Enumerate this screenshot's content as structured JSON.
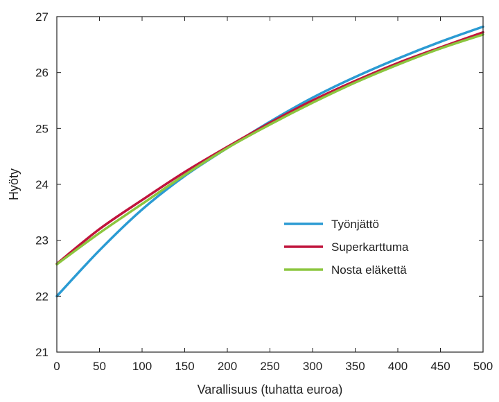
{
  "chart_data": {
    "type": "line",
    "title": "",
    "xlabel": "Varallisuus (tuhatta euroa)",
    "ylabel": "Hyöty",
    "xlim": [
      0,
      500
    ],
    "ylim": [
      21,
      27
    ],
    "xticks": [
      0,
      50,
      100,
      150,
      200,
      250,
      300,
      350,
      400,
      450,
      500
    ],
    "yticks": [
      21,
      22,
      23,
      24,
      25,
      26,
      27
    ],
    "grid": false,
    "legend_position": "center-right",
    "x": [
      0,
      50,
      100,
      150,
      200,
      250,
      300,
      350,
      400,
      450,
      500
    ],
    "series": [
      {
        "name": "Työnjättö",
        "color": "#2B9BD3",
        "values": [
          22.0,
          22.82,
          23.55,
          24.15,
          24.65,
          25.12,
          25.55,
          25.92,
          26.25,
          26.55,
          26.82
        ]
      },
      {
        "name": "Superkarttuma",
        "color": "#C0143C",
        "values": [
          22.58,
          23.2,
          23.72,
          24.22,
          24.67,
          25.1,
          25.5,
          25.85,
          26.17,
          26.45,
          26.72
        ]
      },
      {
        "name": "Nosta eläkettä",
        "color": "#8CC63F",
        "values": [
          22.57,
          23.13,
          23.65,
          24.17,
          24.65,
          25.07,
          25.46,
          25.82,
          26.14,
          26.43,
          26.68
        ]
      }
    ]
  }
}
